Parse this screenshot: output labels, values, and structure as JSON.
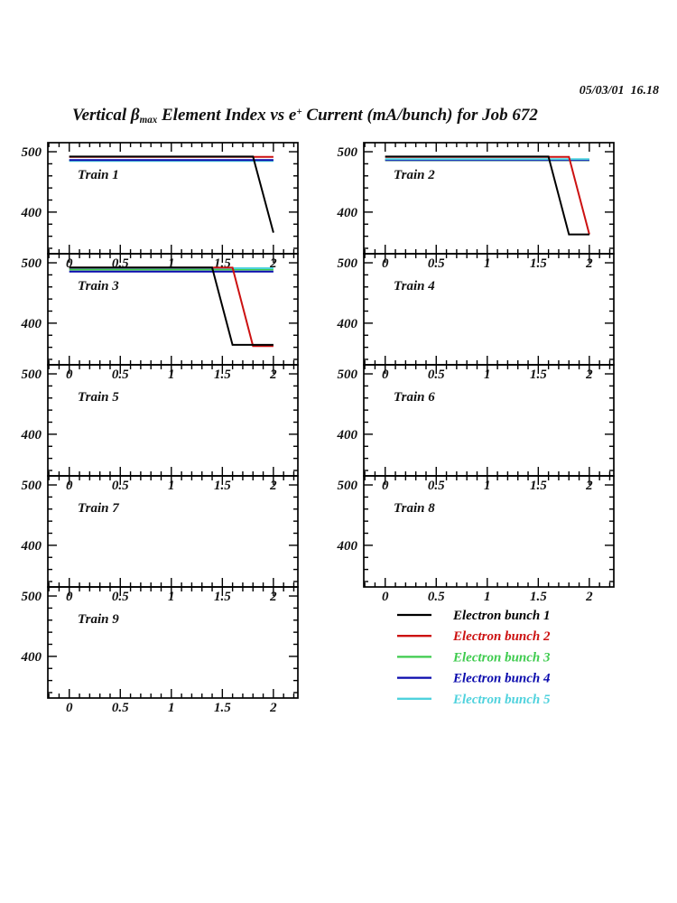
{
  "page": {
    "timestamp": "05/03/01  16.18"
  },
  "title": {
    "prefix": "Vertical ",
    "beta": "β",
    "beta_sub": "max",
    "mid": " Element Index vs e",
    "sup": "+",
    "suffix": " Current (mA/bunch) for Job 672"
  },
  "chart_data": {
    "type": "line",
    "title": "Vertical β_max Element Index vs e+ Current (mA/bunch) for Job 672",
    "timestamp": "05/03/01  16.18",
    "xlabel": "e+ Current (mA/bunch)",
    "ylabel": "Vertical beta_max Element Index",
    "x_axis": {
      "range": [
        -0.21,
        2.24
      ],
      "major_ticks": [
        0,
        0.5,
        1,
        1.5,
        2
      ],
      "major_labels": [
        "0",
        "0.5",
        "1",
        "1.5",
        "2"
      ],
      "minor_step": 0.1
    },
    "y_axis": {
      "range": [
        331,
        515
      ],
      "major_ticks": [
        400,
        500
      ],
      "major_labels": [
        "400",
        "500"
      ],
      "minor_step": 20
    },
    "grid": "off",
    "frame_color": "#000000",
    "bunch_colors": {
      "1": "#000000",
      "2": "#cc1111",
      "3": "#3ecb4e",
      "4": "#0a0aad",
      "5": "#4fd2dd"
    },
    "legend": [
      {
        "bunch": 1,
        "label": "Electron bunch 1"
      },
      {
        "bunch": 2,
        "label": "Electron bunch 2"
      },
      {
        "bunch": 3,
        "label": "Electron bunch 3"
      },
      {
        "bunch": 4,
        "label": "Electron bunch 4"
      },
      {
        "bunch": 5,
        "label": "Electron bunch 5"
      }
    ],
    "trains": [
      {
        "name": "Train 1",
        "col": 0,
        "row": 0,
        "series": [
          {
            "bunch": 3,
            "points": [
              [
                0,
                485.5
              ],
              [
                2,
                485.5
              ]
            ]
          },
          {
            "bunch": 5,
            "points": [
              [
                0,
                484.8
              ],
              [
                2,
                484.8
              ]
            ]
          },
          {
            "bunch": 4,
            "points": [
              [
                0,
                486.2
              ],
              [
                2,
                486.2
              ]
            ]
          },
          {
            "bunch": 2,
            "points": [
              [
                0,
                491.3
              ],
              [
                2,
                491.3
              ]
            ]
          },
          {
            "bunch": 1,
            "points": [
              [
                0,
                492
              ],
              [
                1.8,
                492
              ],
              [
                2,
                366
              ]
            ]
          }
        ]
      },
      {
        "name": "Train 2",
        "col": 1,
        "row": 0,
        "series": [
          {
            "bunch": 3,
            "points": [
              [
                0,
                485.8
              ],
              [
                2,
                485.8
              ]
            ]
          },
          {
            "bunch": 4,
            "points": [
              [
                0,
                486.2
              ],
              [
                2,
                486.2
              ]
            ]
          },
          {
            "bunch": 5,
            "points": [
              [
                0,
                487.8
              ],
              [
                2,
                487.8
              ]
            ]
          },
          {
            "bunch": 2,
            "points": [
              [
                0,
                491.3
              ],
              [
                1.8,
                491.3
              ],
              [
                2,
                363
              ]
            ]
          },
          {
            "bunch": 1,
            "points": [
              [
                0,
                492
              ],
              [
                1.6,
                492
              ],
              [
                1.8,
                363
              ],
              [
                2,
                363
              ]
            ]
          }
        ]
      },
      {
        "name": "Train 3",
        "col": 0,
        "row": 1,
        "series": [
          {
            "bunch": 4,
            "points": [
              [
                0,
                485.5
              ],
              [
                2,
                485.5
              ]
            ]
          },
          {
            "bunch": 3,
            "points": [
              [
                0,
                488.8
              ],
              [
                2,
                488.8
              ]
            ]
          },
          {
            "bunch": 5,
            "points": [
              [
                0,
                491
              ],
              [
                2,
                491
              ]
            ]
          },
          {
            "bunch": 2,
            "points": [
              [
                0,
                492
              ],
              [
                1.6,
                492
              ],
              [
                1.8,
                362
              ],
              [
                2,
                362
              ]
            ]
          },
          {
            "bunch": 1,
            "points": [
              [
                0,
                492.3
              ],
              [
                1.4,
                492.3
              ],
              [
                1.6,
                364
              ],
              [
                2,
                364
              ]
            ]
          }
        ]
      },
      {
        "name": "Train 4",
        "col": 1,
        "row": 1,
        "series": []
      },
      {
        "name": "Train 5",
        "col": 0,
        "row": 2,
        "series": []
      },
      {
        "name": "Train 6",
        "col": 1,
        "row": 2,
        "series": []
      },
      {
        "name": "Train 7",
        "col": 0,
        "row": 3,
        "series": []
      },
      {
        "name": "Train 8",
        "col": 1,
        "row": 3,
        "series": []
      },
      {
        "name": "Train 9",
        "col": 0,
        "row": 4,
        "series": []
      }
    ]
  }
}
